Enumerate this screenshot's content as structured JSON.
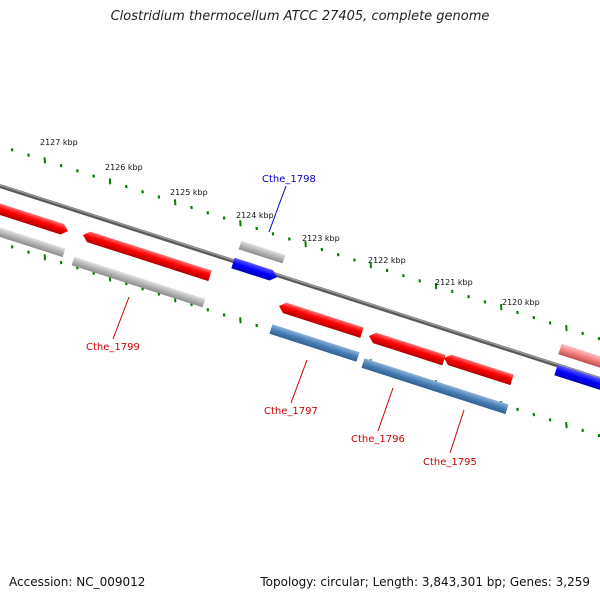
{
  "title": "Clostridium thermocellum ATCC 27405, complete genome",
  "footer": {
    "accession": "Accession: NC_009012",
    "topology": "Topology: circular; Length: 3,843,301 bp; Genes: 3,259"
  },
  "scale_labels": [
    "2127 kbp",
    "2126 kbp",
    "2125 kbp",
    "2124 kbp",
    "2123 kbp",
    "2122 kbp",
    "2121 kbp",
    "2120 kbp"
  ],
  "gene_labels": {
    "cthe_1798": "Cthe_1798",
    "cthe_1799": "Cthe_1799",
    "cthe_1797": "Cthe_1797",
    "cthe_1796": "Cthe_1796",
    "cthe_1795": "Cthe_1795"
  },
  "colors": {
    "forward_red": "#ff0000",
    "grey_feature": "#b0b0b0",
    "blue_feature": "#0000ff",
    "steel_blue": "#4a7fb5",
    "backbone": "#777777",
    "tick_green": "#007f00",
    "label_red": "#cc0000",
    "label_blue": "#0000cc"
  }
}
